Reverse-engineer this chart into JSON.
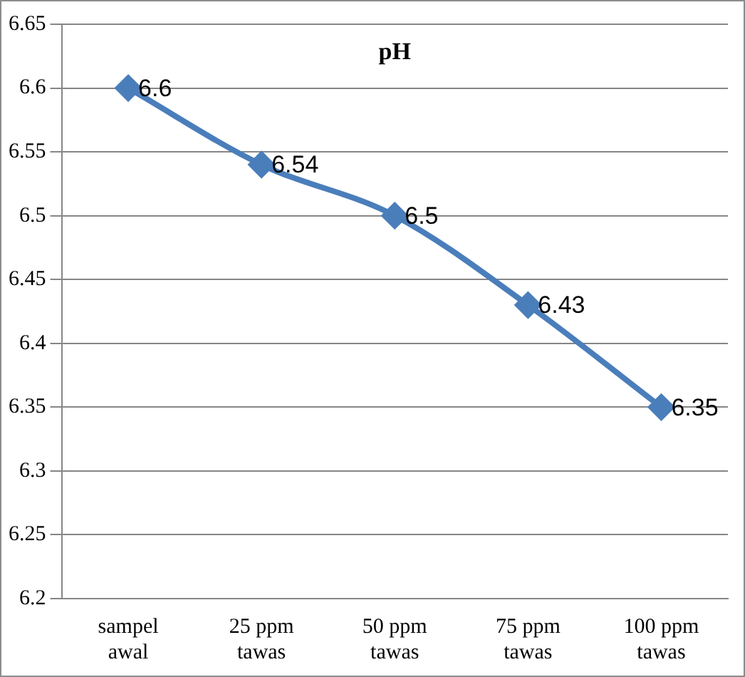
{
  "chart_data": {
    "type": "line",
    "title": "pH",
    "categories": [
      "sampel awal",
      "25 ppm tawas",
      "50 ppm tawas",
      "75 ppm tawas",
      "100 ppm tawas"
    ],
    "series": [
      {
        "color": "#4a7ebb",
        "values": [
          6.6,
          6.54,
          6.5,
          6.43,
          6.35
        ]
      }
    ],
    "ylim": [
      6.2,
      6.65
    ],
    "yticks": [
      6.2,
      6.25,
      6.3,
      6.35,
      6.4,
      6.45,
      6.5,
      6.55,
      6.6,
      6.65
    ],
    "grid": "y",
    "legend": false,
    "marker": "diamond",
    "line_style": "solid",
    "data_labels": true
  }
}
